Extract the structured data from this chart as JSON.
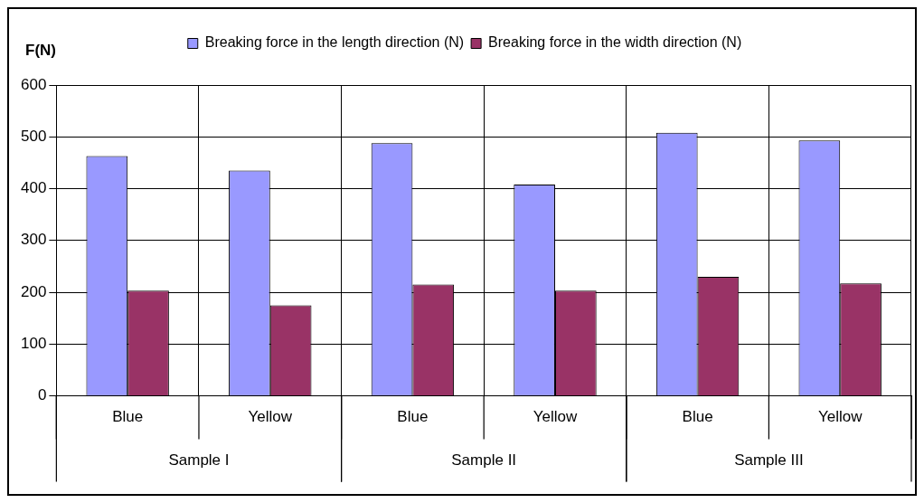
{
  "chart_data": {
    "type": "bar",
    "ylabel": "F(N)",
    "categories": [
      "Blue",
      "Yellow",
      "Blue",
      "Yellow",
      "Blue",
      "Yellow"
    ],
    "series": [
      {
        "name": "Breaking force in the length direction (N)",
        "color": "#9999ff",
        "values": [
          463,
          435,
          488,
          408,
          508,
          493
        ]
      },
      {
        "name": "Breaking force in the width direction (N)",
        "color": "#993366",
        "values": [
          203,
          175,
          215,
          203,
          230,
          217
        ]
      }
    ],
    "annotations": [
      "Sample I",
      "Sample II",
      "Sample III"
    ],
    "ylim": [
      0,
      600
    ],
    "yticks": [
      0,
      100,
      200,
      300,
      400,
      500,
      600
    ],
    "grid": true,
    "legend": "top"
  }
}
